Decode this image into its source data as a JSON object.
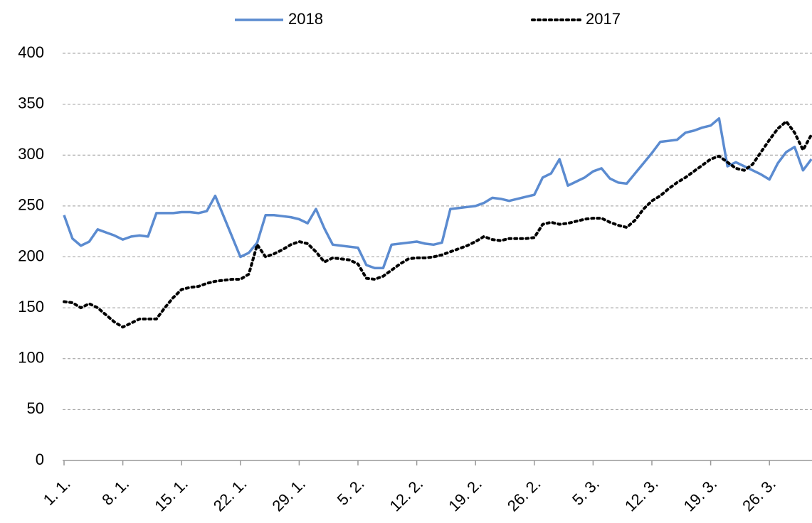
{
  "chart_data": {
    "type": "line",
    "categories": [
      "1. 1.",
      null,
      null,
      null,
      null,
      null,
      null,
      "8. 1.",
      null,
      null,
      null,
      null,
      null,
      null,
      "15. 1.",
      null,
      null,
      null,
      null,
      null,
      null,
      "22. 1.",
      null,
      null,
      null,
      null,
      null,
      null,
      "29. 1.",
      null,
      null,
      null,
      null,
      null,
      null,
      "5. 2.",
      null,
      null,
      null,
      null,
      null,
      null,
      "12. 2.",
      null,
      null,
      null,
      null,
      null,
      null,
      "19. 2.",
      null,
      null,
      null,
      null,
      null,
      null,
      "26. 2.",
      null,
      null,
      null,
      null,
      null,
      null,
      "5. 3.",
      null,
      null,
      null,
      null,
      null,
      null,
      "12. 3.",
      null,
      null,
      null,
      null,
      null,
      null,
      "19. 3.",
      null,
      null,
      null,
      null,
      null,
      null,
      "26. 3.",
      null,
      null,
      null,
      null,
      null
    ],
    "series": [
      {
        "name": "2018",
        "color": "#5b8bd0",
        "dash": "solid",
        "values": [
          241,
          218,
          211,
          215,
          227,
          224,
          221,
          217,
          220,
          221,
          220,
          243,
          243,
          243,
          244,
          244,
          243,
          245,
          260,
          240,
          220,
          200,
          204,
          214,
          241,
          241,
          240,
          239,
          237,
          233,
          247,
          228,
          212,
          211,
          210,
          209,
          192,
          189,
          189,
          212,
          213,
          214,
          215,
          213,
          212,
          214,
          247,
          248,
          249,
          250,
          253,
          258,
          257,
          255,
          257,
          259,
          261,
          278,
          282,
          296,
          270,
          274,
          278,
          284,
          287,
          277,
          273,
          272,
          282,
          292,
          302,
          313,
          314,
          315,
          322,
          324,
          327,
          329,
          336,
          289,
          293,
          289,
          285,
          281,
          276,
          292,
          303,
          308,
          285,
          296
        ]
      },
      {
        "name": "2017",
        "color": "#000000",
        "dash": "dotted",
        "values": [
          156,
          155,
          150,
          154,
          150,
          143,
          136,
          131,
          135,
          139,
          139,
          139,
          150,
          160,
          168,
          170,
          171,
          174,
          176,
          177,
          178,
          178,
          183,
          212,
          200,
          203,
          207,
          212,
          215,
          213,
          205,
          195,
          199,
          198,
          197,
          193,
          179,
          178,
          181,
          187,
          193,
          198,
          199,
          199,
          200,
          202,
          205,
          208,
          211,
          215,
          220,
          217,
          216,
          218,
          218,
          218,
          219,
          232,
          234,
          232,
          233,
          235,
          237,
          238,
          238,
          234,
          231,
          229,
          236,
          247,
          255,
          260,
          267,
          273,
          278,
          284,
          290,
          296,
          299,
          293,
          287,
          285,
          291,
          303,
          315,
          326,
          333,
          322,
          305,
          320
        ]
      }
    ],
    "ylim": [
      0,
      400
    ],
    "yticks": [
      0,
      50,
      100,
      150,
      200,
      250,
      300,
      350,
      400
    ],
    "grid": true,
    "legend": "top"
  }
}
